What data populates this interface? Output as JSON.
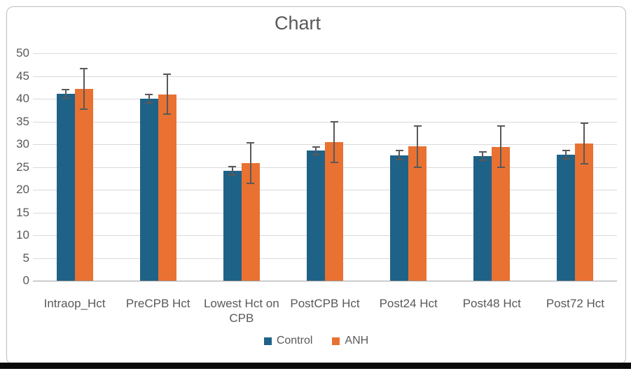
{
  "chart_data": {
    "type": "bar",
    "title": "Chart",
    "categories": [
      "Intraop_Hct",
      "PreCPB Hct",
      "Lowest Hct on CPB",
      "PostCPB Hct",
      "Post24 Hct",
      "Post48 Hct",
      "Post72 Hct"
    ],
    "series": [
      {
        "name": "Control",
        "color": "#1f6287",
        "values": [
          41.1,
          40.0,
          24.1,
          28.6,
          27.6,
          27.4,
          27.7
        ],
        "errors": [
          1.1,
          1.1,
          1.1,
          1.0,
          1.1,
          1.1,
          1.1
        ]
      },
      {
        "name": "ANH",
        "color": "#e97132",
        "values": [
          42.2,
          41.0,
          25.8,
          30.5,
          29.5,
          29.4,
          30.2
        ],
        "errors": [
          4.6,
          4.6,
          4.6,
          4.6,
          4.7,
          4.7,
          4.6
        ]
      }
    ],
    "xlabel": "",
    "ylabel": "",
    "ylim": [
      0,
      50
    ],
    "yticks": [
      0,
      5,
      10,
      15,
      20,
      25,
      30,
      35,
      40,
      45,
      50
    ],
    "grid": true,
    "error_bars": true,
    "legend_position": "bottom"
  },
  "theme": {
    "gridline": "#d9d9d9",
    "baseline": "#a0a0a0",
    "axis_text": "#595959",
    "error_bar": "#595959",
    "card_border": "#bdbdbd",
    "bottom_strip": "#0a0a0a"
  }
}
